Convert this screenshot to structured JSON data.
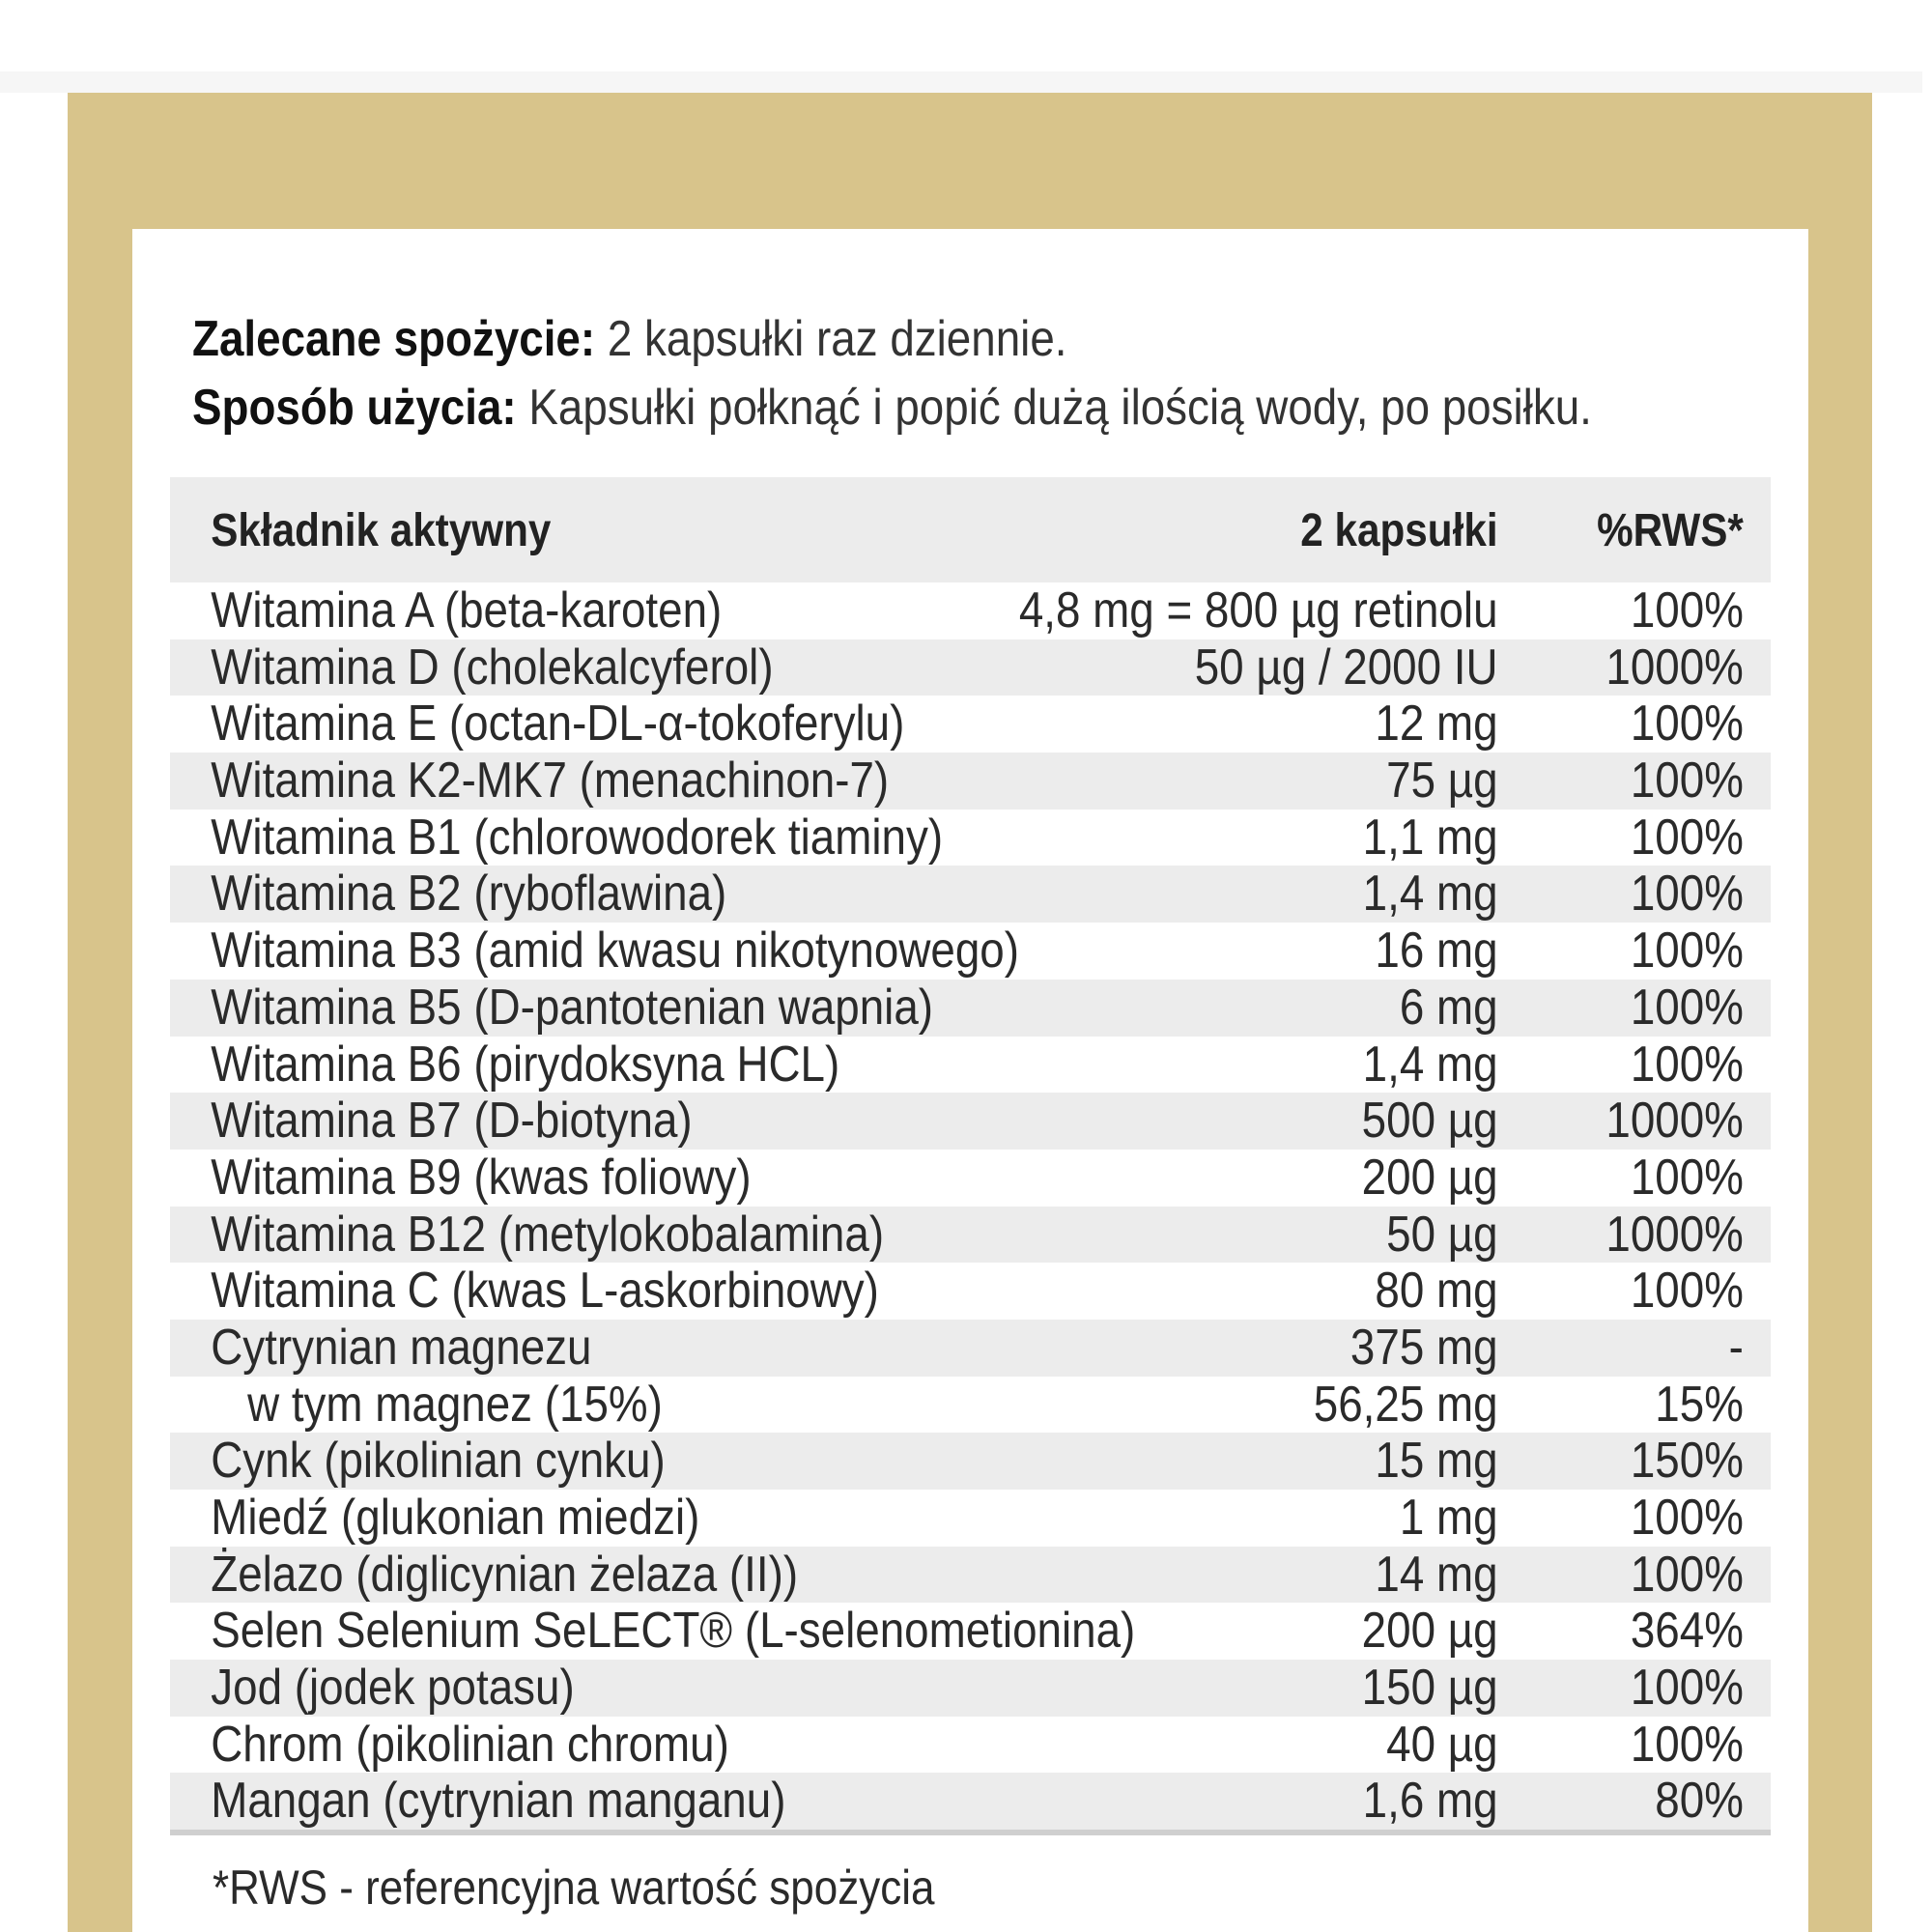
{
  "colors": {
    "frame": "#d8c48b",
    "row_alt": "#ececec",
    "panel": "#ffffff"
  },
  "intro": {
    "line1_label": "Zalecane spożycie:",
    "line1_value": " 2 kapsułki raz dziennie.",
    "line2_label": "Sposób użycia:",
    "line2_value": " Kapsułki połknąć i popić dużą ilością wody, po posiłku."
  },
  "table": {
    "headers": {
      "name": "Składnik aktywny",
      "amount": "2 kapsułki",
      "rws": "%RWS*"
    },
    "rows": [
      {
        "name": "Witamina A (beta-karoten)",
        "amount": "4,8 mg = 800 µg retinolu",
        "rws": "100%"
      },
      {
        "name": "Witamina D (cholekalcyferol)",
        "amount": "50 µg / 2000 IU",
        "rws": "1000%"
      },
      {
        "name": "Witamina E (octan-DL-α-tokoferylu)",
        "amount": "12 mg",
        "rws": "100%"
      },
      {
        "name": "Witamina K2-MK7 (menachinon-7)",
        "amount": "75 µg",
        "rws": "100%"
      },
      {
        "name": "Witamina B1 (chlorowodorek tiaminy)",
        "amount": "1,1 mg",
        "rws": "100%"
      },
      {
        "name": "Witamina B2 (ryboflawina)",
        "amount": "1,4 mg",
        "rws": "100%"
      },
      {
        "name": "Witamina B3 (amid kwasu nikotynowego)",
        "amount": "16 mg",
        "rws": "100%"
      },
      {
        "name": "Witamina B5 (D-pantotenian wapnia)",
        "amount": "6 mg",
        "rws": "100%"
      },
      {
        "name": "Witamina B6 (pirydoksyna HCL)",
        "amount": "1,4 mg",
        "rws": "100%"
      },
      {
        "name": "Witamina B7 (D-biotyna)",
        "amount": "500 µg",
        "rws": "1000%"
      },
      {
        "name": "Witamina B9 (kwas foliowy)",
        "amount": "200 µg",
        "rws": "100%"
      },
      {
        "name": "Witamina B12 (metylokobalamina)",
        "amount": "50 µg",
        "rws": "1000%"
      },
      {
        "name": "Witamina C (kwas L-askorbinowy)",
        "amount": "80 mg",
        "rws": "100%"
      },
      {
        "name": "Cytrynian magnezu",
        "amount": "375 mg",
        "rws": "-"
      },
      {
        "name": "w tym magnez (15%)",
        "amount": "56,25 mg",
        "rws": "15%",
        "sub": true
      },
      {
        "name": "Cynk (pikolinian cynku)",
        "amount": "15 mg",
        "rws": "150%"
      },
      {
        "name": "Miedź (glukonian miedzi)",
        "amount": "1 mg",
        "rws": "100%"
      },
      {
        "name": "Żelazo (diglicynian żelaza (II))",
        "amount": "14 mg",
        "rws": "100%"
      },
      {
        "name": "Selen Selenium SeLECT® (L-selenometionina)",
        "amount": "200 µg",
        "rws": "364%"
      },
      {
        "name": "Jod (jodek potasu)",
        "amount": "150 µg",
        "rws": "100%"
      },
      {
        "name": "Chrom (pikolinian chromu)",
        "amount": "40 µg",
        "rws": "100%"
      },
      {
        "name": "Mangan (cytrynian manganu)",
        "amount": "1,6 mg",
        "rws": "80%"
      }
    ]
  },
  "footnote": "*RWS - referencyjna wartość spożycia"
}
